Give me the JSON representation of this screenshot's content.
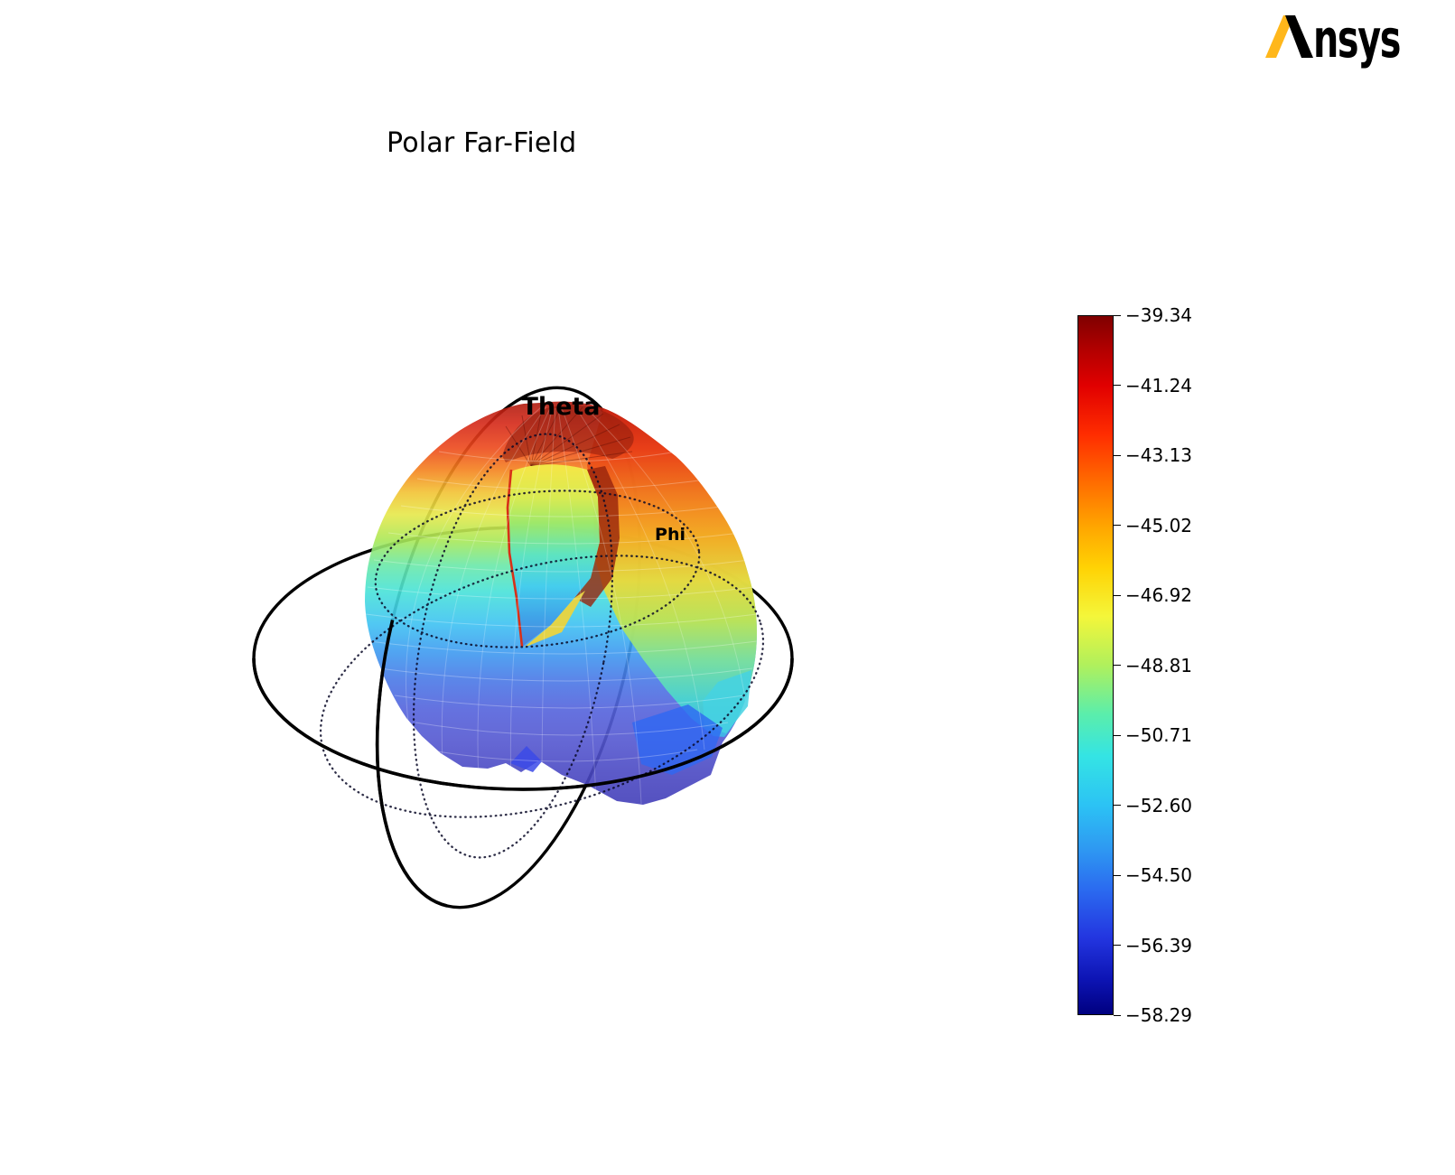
{
  "page": {
    "background": "#ffffff"
  },
  "header": {
    "title": "Polar Far-Field"
  },
  "logo": {
    "brand": "Ansys",
    "text_after_mark": "nsys",
    "accent_color": "#FFB71B",
    "text_color": "#000000"
  },
  "plot": {
    "theta_label": "Theta",
    "phi_label": "Phi"
  },
  "colorbar": {
    "colormap": "jet",
    "ticks": [
      "−39.34",
      "−41.24",
      "−43.13",
      "−45.02",
      "−46.92",
      "−48.81",
      "−50.71",
      "−52.60",
      "−54.50",
      "−56.39",
      "−58.29"
    ]
  },
  "chart_data": {
    "type": "3d-polar-surface",
    "title": "Polar Far-Field",
    "axes": {
      "angular": [
        "Theta",
        "Phi"
      ]
    },
    "colormap": "jet",
    "value_range": [
      -58.29,
      -39.34
    ],
    "colorbar_tick_values": [
      -39.34,
      -41.24,
      -43.13,
      -45.02,
      -46.92,
      -48.81,
      -50.71,
      -52.6,
      -54.5,
      -56.39,
      -58.29
    ],
    "tick_step": 1.895,
    "max_value_location": "top pole (around Theta = 0)",
    "min_value_location": "bottom of pattern",
    "features": "deformed-sphere far-field radiation pattern with a notch/dip on the front upper side reaching a funnel point near the center; solid black theta and phi great-circle rings; dotted auxiliary circles"
  }
}
